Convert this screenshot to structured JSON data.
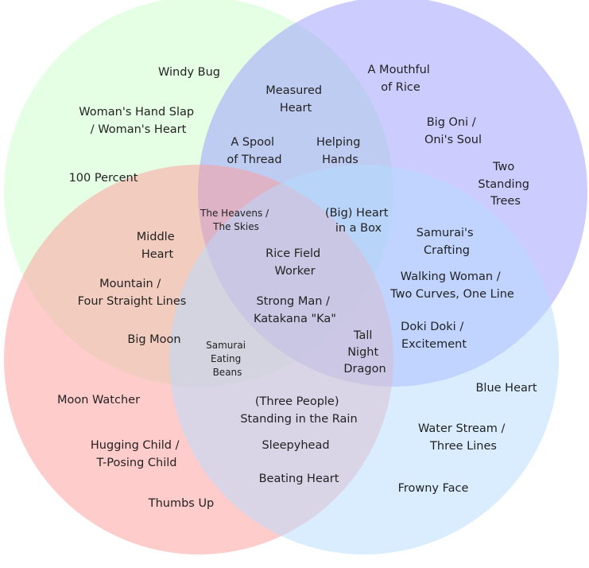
{
  "circles": [
    {
      "id": "top-left",
      "color": "#ccffcc"
    },
    {
      "id": "top-right",
      "color": "#9999ff"
    },
    {
      "id": "bottom-left",
      "color": "#ff9999"
    },
    {
      "id": "bottom-right",
      "color": "#b3dcff"
    }
  ],
  "labels": {
    "windy_bug": [
      "Windy Bug"
    ],
    "womans_hand_slap": [
      "Woman's Hand Slap",
      "/ Woman's Heart"
    ],
    "hundred_percent": [
      "100 Percent"
    ],
    "measured_heart": [
      "Measured",
      "Heart"
    ],
    "spool_of_thread": [
      "A Spool",
      "of Thread"
    ],
    "helping_hands": [
      "Helping",
      "Hands"
    ],
    "mouthful_of_rice": [
      "A Mouthful",
      "of Rice"
    ],
    "big_oni": [
      "Big Oni /",
      "Oni's Soul"
    ],
    "two_standing_trees": [
      "Two",
      "Standing",
      "Trees"
    ],
    "heavens_skies": [
      "The Heavens /",
      "The Skies"
    ],
    "heart_in_a_box": [
      "(Big) Heart",
      "in a Box"
    ],
    "middle_heart": [
      "Middle",
      "Heart"
    ],
    "mountain": [
      "Mountain /",
      "Four Straight Lines"
    ],
    "big_moon": [
      "Big Moon"
    ],
    "rice_field_worker": [
      "Rice Field",
      "Worker"
    ],
    "strong_man": [
      "Strong Man /",
      "Katakana \"Ka\""
    ],
    "samurais_crafting": [
      "Samurai's",
      "Crafting"
    ],
    "walking_woman": [
      "Walking Woman /",
      "Two Curves, One Line"
    ],
    "doki_doki": [
      "Doki Doki /",
      "Excitement"
    ],
    "samurai_eating_beans": [
      "Samurai",
      "Eating",
      "Beans"
    ],
    "tall_night_dragon": [
      "Tall",
      "Night",
      "Dragon"
    ],
    "moon_watcher": [
      "Moon Watcher"
    ],
    "hugging_child": [
      "Hugging Child /",
      "T-Posing Child"
    ],
    "thumbs_up": [
      "Thumbs Up"
    ],
    "three_people": [
      "(Three People)",
      "Standing in the Rain"
    ],
    "sleepyhead": [
      "Sleepyhead"
    ],
    "beating_heart": [
      "Beating Heart"
    ],
    "blue_heart": [
      "Blue Heart"
    ],
    "water_stream": [
      "Water Stream /",
      "Three Lines"
    ],
    "frowny_face": [
      "Frowny Face"
    ]
  }
}
